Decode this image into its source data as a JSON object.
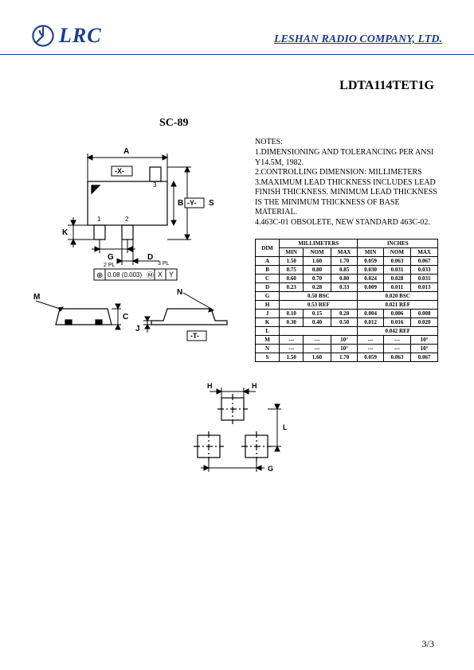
{
  "header": {
    "logo_text": "LRC",
    "company": "LESHAN RADIO COMPANY, LTD."
  },
  "part_number": "LDTA114TET1G",
  "package": "SC-89",
  "notes": {
    "title": "NOTES:",
    "lines": [
      "1.DIMENSIONING AND TOLERANCING PER ANSI Y14.5M, 1982.",
      "2.CONTROLLING DIMENSION: MILLIMETERS",
      "3.MAXIMUM LEAD THICKNESS INCLUDES LEAD FINISH THICKNESS. MINIMUM LEAD THICKNESS IS THE MINIMUM THICKNESS OF BASE MATERIAL.",
      "4.463C-01 OBSOLETE, NEW STANDARD 463C-02."
    ]
  },
  "table": {
    "headers": {
      "dim": "DIM",
      "mm": "MILLIMETERS",
      "in": "INCHES",
      "min": "MIN",
      "nom": "NOM",
      "max": "MAX"
    },
    "rows": [
      {
        "d": "A",
        "mm": [
          "1.50",
          "1.60",
          "1.70"
        ],
        "in": [
          "0.059",
          "0.063",
          "0.067"
        ]
      },
      {
        "d": "B",
        "mm": [
          "0.75",
          "0.80",
          "0.85"
        ],
        "in": [
          "0.030",
          "0.031",
          "0.033"
        ]
      },
      {
        "d": "C",
        "mm": [
          "0.60",
          "0.70",
          "0.80"
        ],
        "in": [
          "0.024",
          "0.028",
          "0.031"
        ]
      },
      {
        "d": "D",
        "mm": [
          "0.23",
          "0.28",
          "0.33"
        ],
        "in": [
          "0.009",
          "0.011",
          "0.013"
        ]
      },
      {
        "d": "G",
        "ref_mm": "0.50 BSC",
        "ref_in": "0.020 BSC"
      },
      {
        "d": "H",
        "ref_mm": "0.53 REF",
        "ref_in": "0.021 REF"
      },
      {
        "d": "J",
        "mm": [
          "0.10",
          "0.15",
          "0.20"
        ],
        "in": [
          "0.004",
          "0.006",
          "0.008"
        ]
      },
      {
        "d": "K",
        "mm": [
          "0.30",
          "0.40",
          "0.50"
        ],
        "in": [
          "0.012",
          "0.016",
          "0.020"
        ]
      },
      {
        "d": "L",
        "ref_mm": "",
        "ref_in": "0.042 REF"
      },
      {
        "d": "M",
        "mm": [
          "---",
          "---",
          "10°"
        ],
        "in": [
          "---",
          "---",
          "10°"
        ]
      },
      {
        "d": "N",
        "mm": [
          "---",
          "---",
          "10°"
        ],
        "in": [
          "---",
          "---",
          "10°"
        ]
      },
      {
        "d": "S",
        "mm": [
          "1.50",
          "1.60",
          "1.70"
        ],
        "in": [
          "0.059",
          "0.063",
          "0.067"
        ]
      }
    ]
  },
  "diagram": {
    "top": {
      "labels": {
        "A": "A",
        "X": "-X-",
        "B": "B",
        "Y": "-Y-",
        "S": "S",
        "K": "K",
        "G": "G",
        "G2": "2 PL",
        "D": "D",
        "D3": "3 PL",
        "pin1": "1",
        "pin2": "2",
        "pin3": "3"
      },
      "gd_box": "0.08 (0.003)",
      "gd_sym": "⊕",
      "gd_m": "Ⓜ",
      "gd_xy": [
        "X",
        "Y"
      ]
    },
    "side": {
      "M": "M",
      "C": "C",
      "J": "J",
      "N": "N",
      "T": "-T-"
    },
    "footprint": {
      "H": "H",
      "L": "L",
      "G": "G"
    }
  },
  "page": "3/3",
  "colors": {
    "brand": "#1a3e8c",
    "line": "#000000"
  }
}
